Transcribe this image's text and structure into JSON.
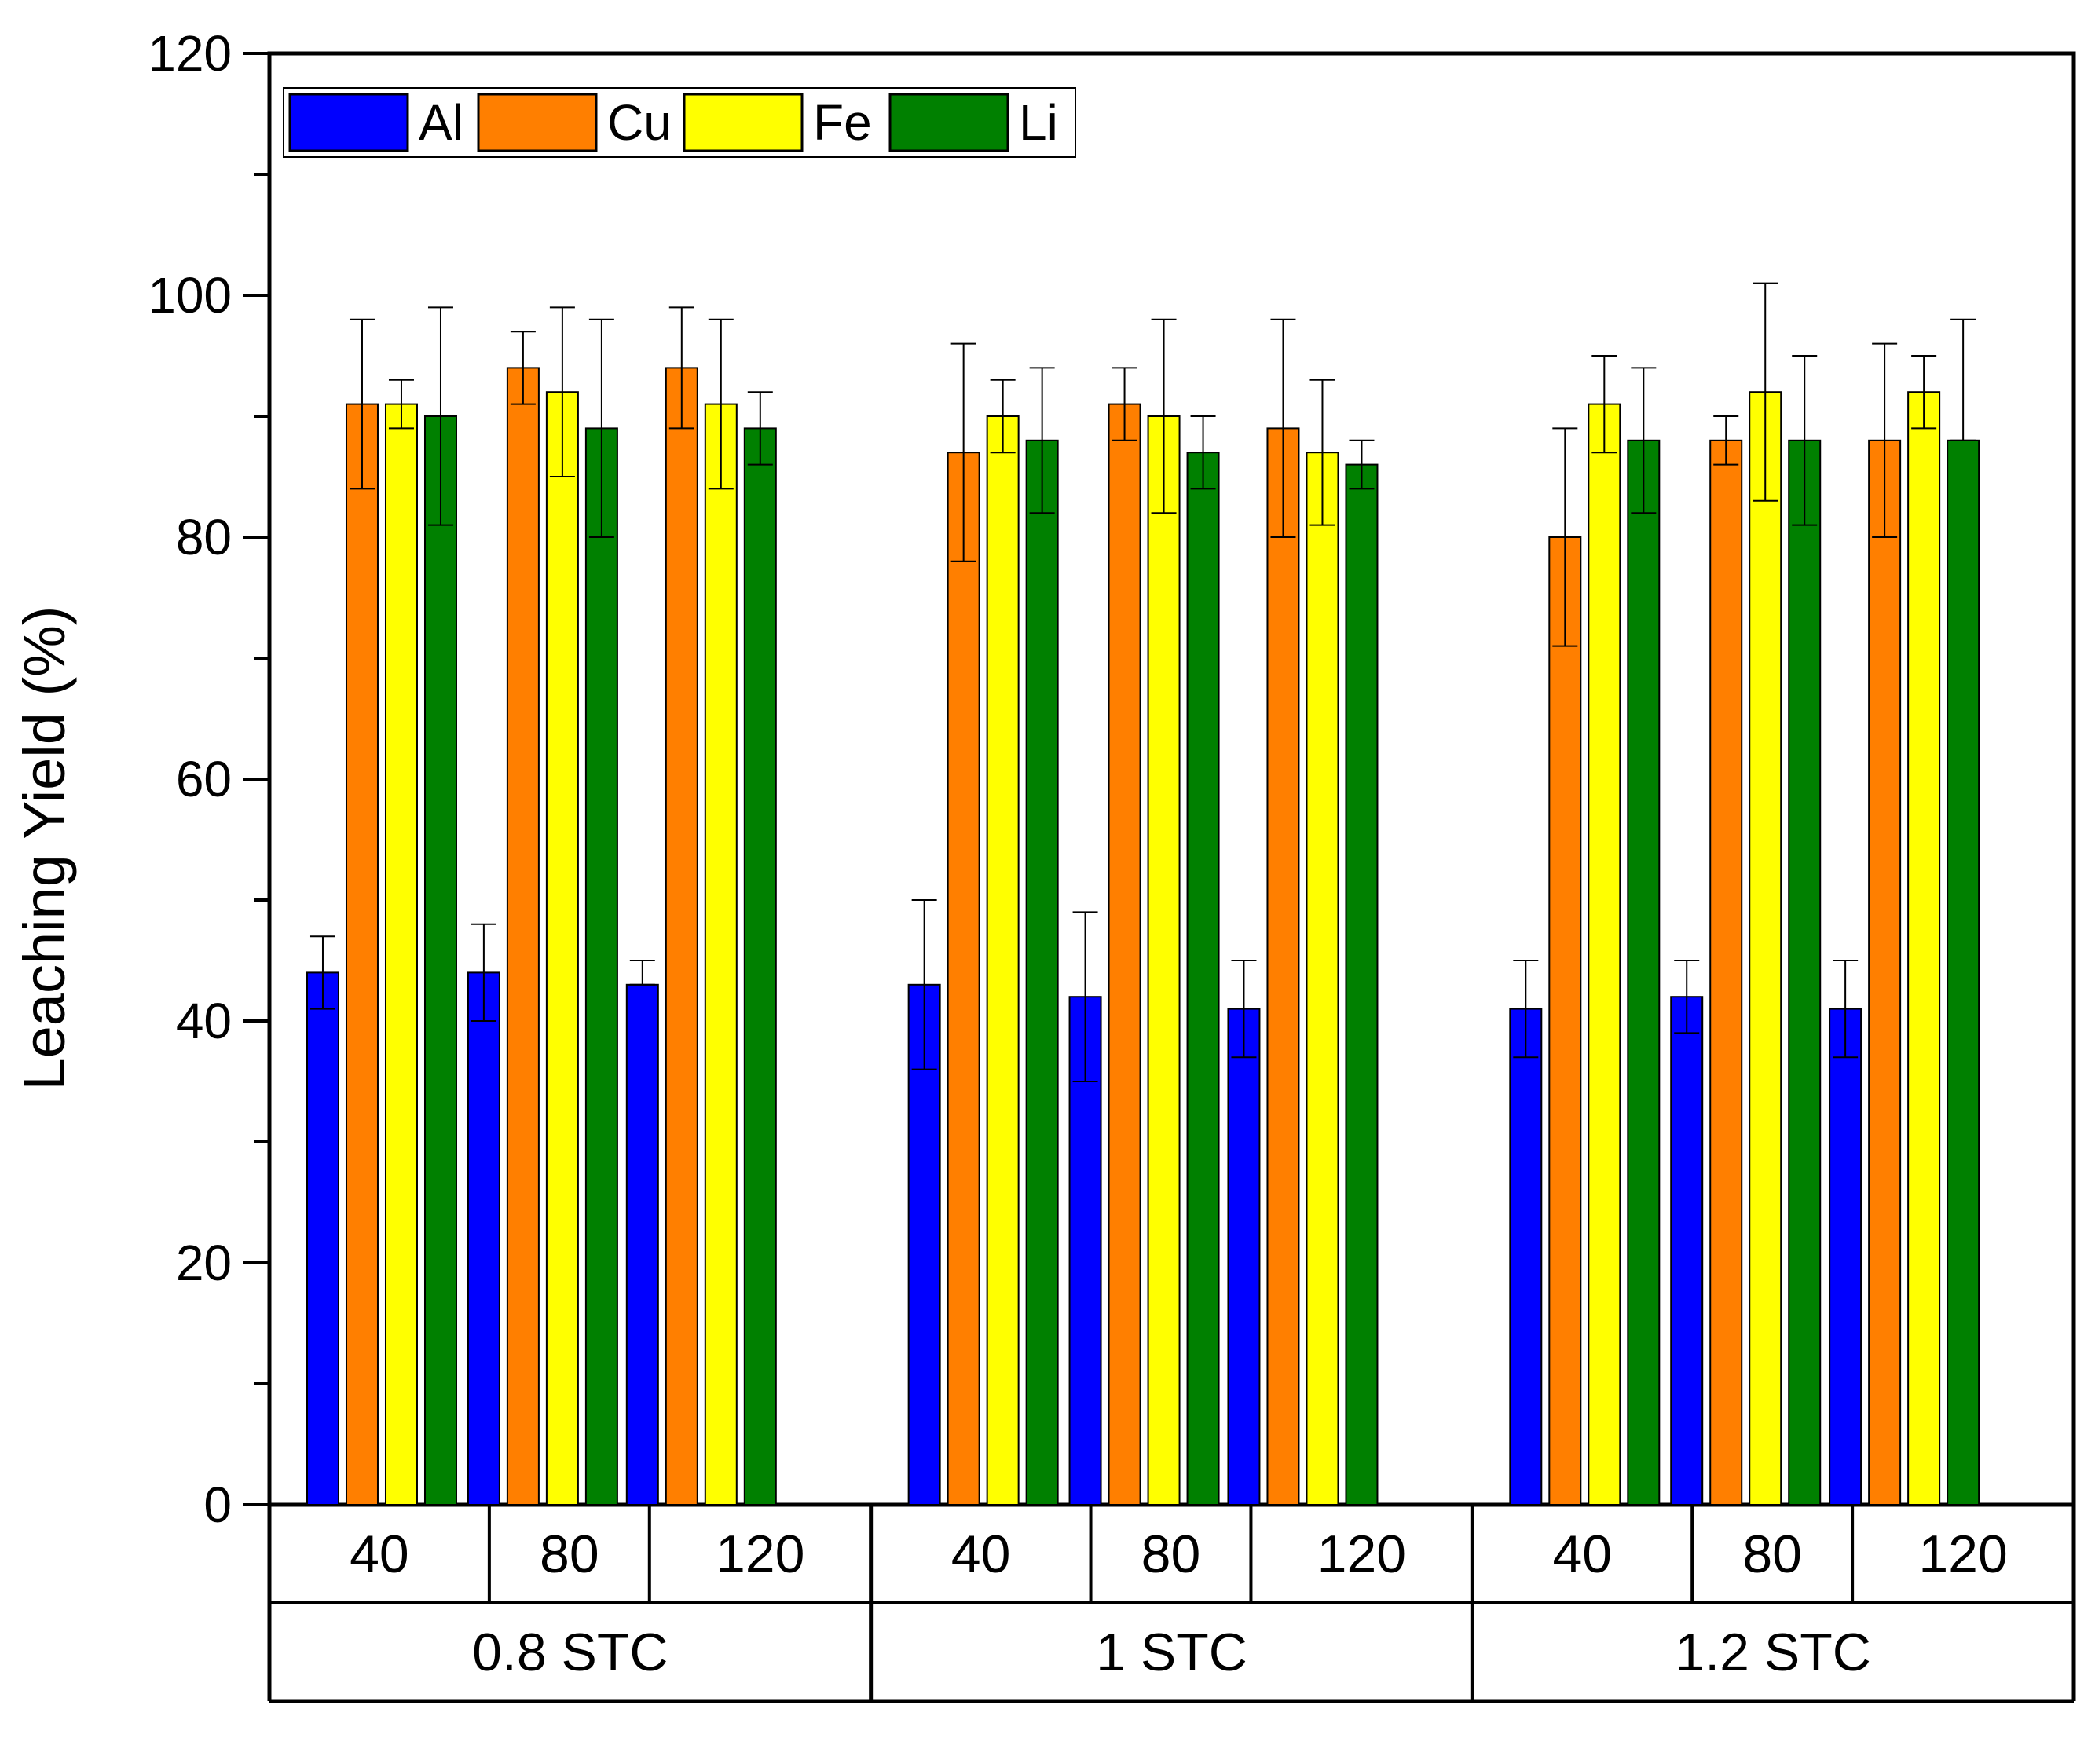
{
  "chart_data": {
    "type": "bar",
    "title": "",
    "xlabel": "",
    "ylabel": "Leaching Yield (%)",
    "ylim": [
      0,
      120
    ],
    "yticks": [
      0,
      20,
      40,
      60,
      80,
      100,
      120
    ],
    "grid": false,
    "legend_position": "top-left",
    "group_labels": [
      "0.8 STC",
      "1 STC",
      "1.2 STC"
    ],
    "categories": [
      "40",
      "80",
      "120",
      "40",
      "80",
      "120",
      "40",
      "80",
      "120"
    ],
    "series": [
      {
        "name": "Al",
        "color": "#0000FF",
        "values": [
          44,
          44,
          43,
          43,
          42,
          41,
          41,
          42,
          41
        ],
        "error_low": [
          41,
          40,
          43,
          36,
          35,
          37,
          37,
          39,
          37
        ],
        "error_high": [
          47,
          48,
          45,
          50,
          49,
          45,
          45,
          45,
          45
        ]
      },
      {
        "name": "Cu",
        "color": "#FF7F00",
        "values": [
          91,
          94,
          94,
          87,
          91,
          89,
          80,
          88,
          88
        ],
        "error_low": [
          84,
          91,
          89,
          78,
          88,
          80,
          71,
          86,
          80
        ],
        "error_high": [
          98,
          97,
          99,
          96,
          94,
          98,
          89,
          90,
          96
        ]
      },
      {
        "name": "Fe",
        "color": "#FFFF00",
        "values": [
          91,
          92,
          91,
          90,
          90,
          87,
          91,
          92,
          92
        ],
        "error_low": [
          89,
          85,
          84,
          87,
          82,
          81,
          87,
          83,
          89
        ],
        "error_high": [
          93,
          99,
          98,
          93,
          98,
          93,
          95,
          101,
          95
        ]
      },
      {
        "name": "Li",
        "color": "#008000",
        "values": [
          90,
          89,
          89,
          88,
          87,
          86,
          88,
          88,
          88
        ],
        "error_low": [
          81,
          80,
          86,
          82,
          84,
          84,
          82,
          81,
          88
        ],
        "error_high": [
          99,
          98,
          92,
          94,
          90,
          88,
          94,
          95,
          98
        ]
      }
    ]
  }
}
